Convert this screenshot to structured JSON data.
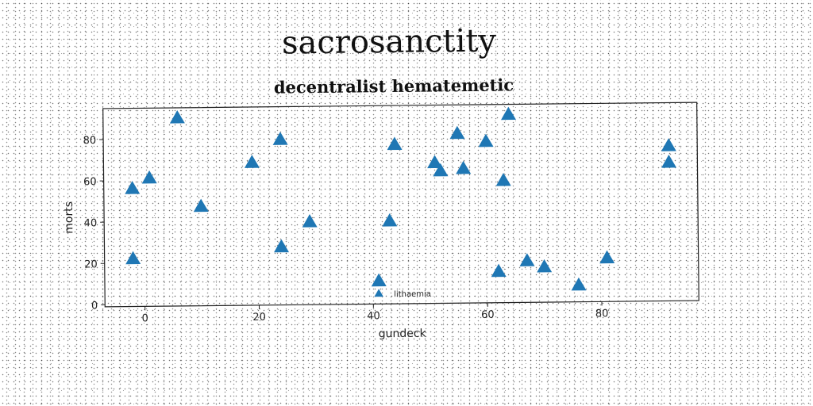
{
  "figure": {
    "title": "sacrosanctity"
  },
  "chart_data": {
    "type": "scatter",
    "title": "decentralist hematemetic",
    "xlabel": "gundeck",
    "ylabel": "morts",
    "xlim": [
      -7,
      97
    ],
    "ylim": [
      -1,
      95
    ],
    "xticks": [
      0,
      20,
      40,
      60,
      80
    ],
    "yticks": [
      0,
      20,
      40,
      60,
      80
    ],
    "grid": false,
    "legend_position": "bottom-center",
    "marker": "triangle",
    "color": "#1f77b4",
    "series": [
      {
        "name": "lithaemia",
        "points": [
          {
            "x": 6,
            "y": 90
          },
          {
            "x": -2,
            "y": 56
          },
          {
            "x": 1,
            "y": 61
          },
          {
            "x": -2,
            "y": 22
          },
          {
            "x": 10,
            "y": 47
          },
          {
            "x": 19,
            "y": 68
          },
          {
            "x": 24,
            "y": 79
          },
          {
            "x": 24,
            "y": 27
          },
          {
            "x": 29,
            "y": 39
          },
          {
            "x": 43,
            "y": 39
          },
          {
            "x": 44,
            "y": 76
          },
          {
            "x": 41,
            "y": 10
          },
          {
            "x": 51,
            "y": 67
          },
          {
            "x": 52,
            "y": 63
          },
          {
            "x": 55,
            "y": 81
          },
          {
            "x": 56,
            "y": 64
          },
          {
            "x": 60,
            "y": 77
          },
          {
            "x": 63,
            "y": 58
          },
          {
            "x": 64,
            "y": 90
          },
          {
            "x": 62,
            "y": 14
          },
          {
            "x": 67,
            "y": 19
          },
          {
            "x": 70,
            "y": 16
          },
          {
            "x": 76,
            "y": 7
          },
          {
            "x": 81,
            "y": 20
          },
          {
            "x": 92,
            "y": 74
          },
          {
            "x": 92,
            "y": 66
          }
        ]
      }
    ]
  }
}
